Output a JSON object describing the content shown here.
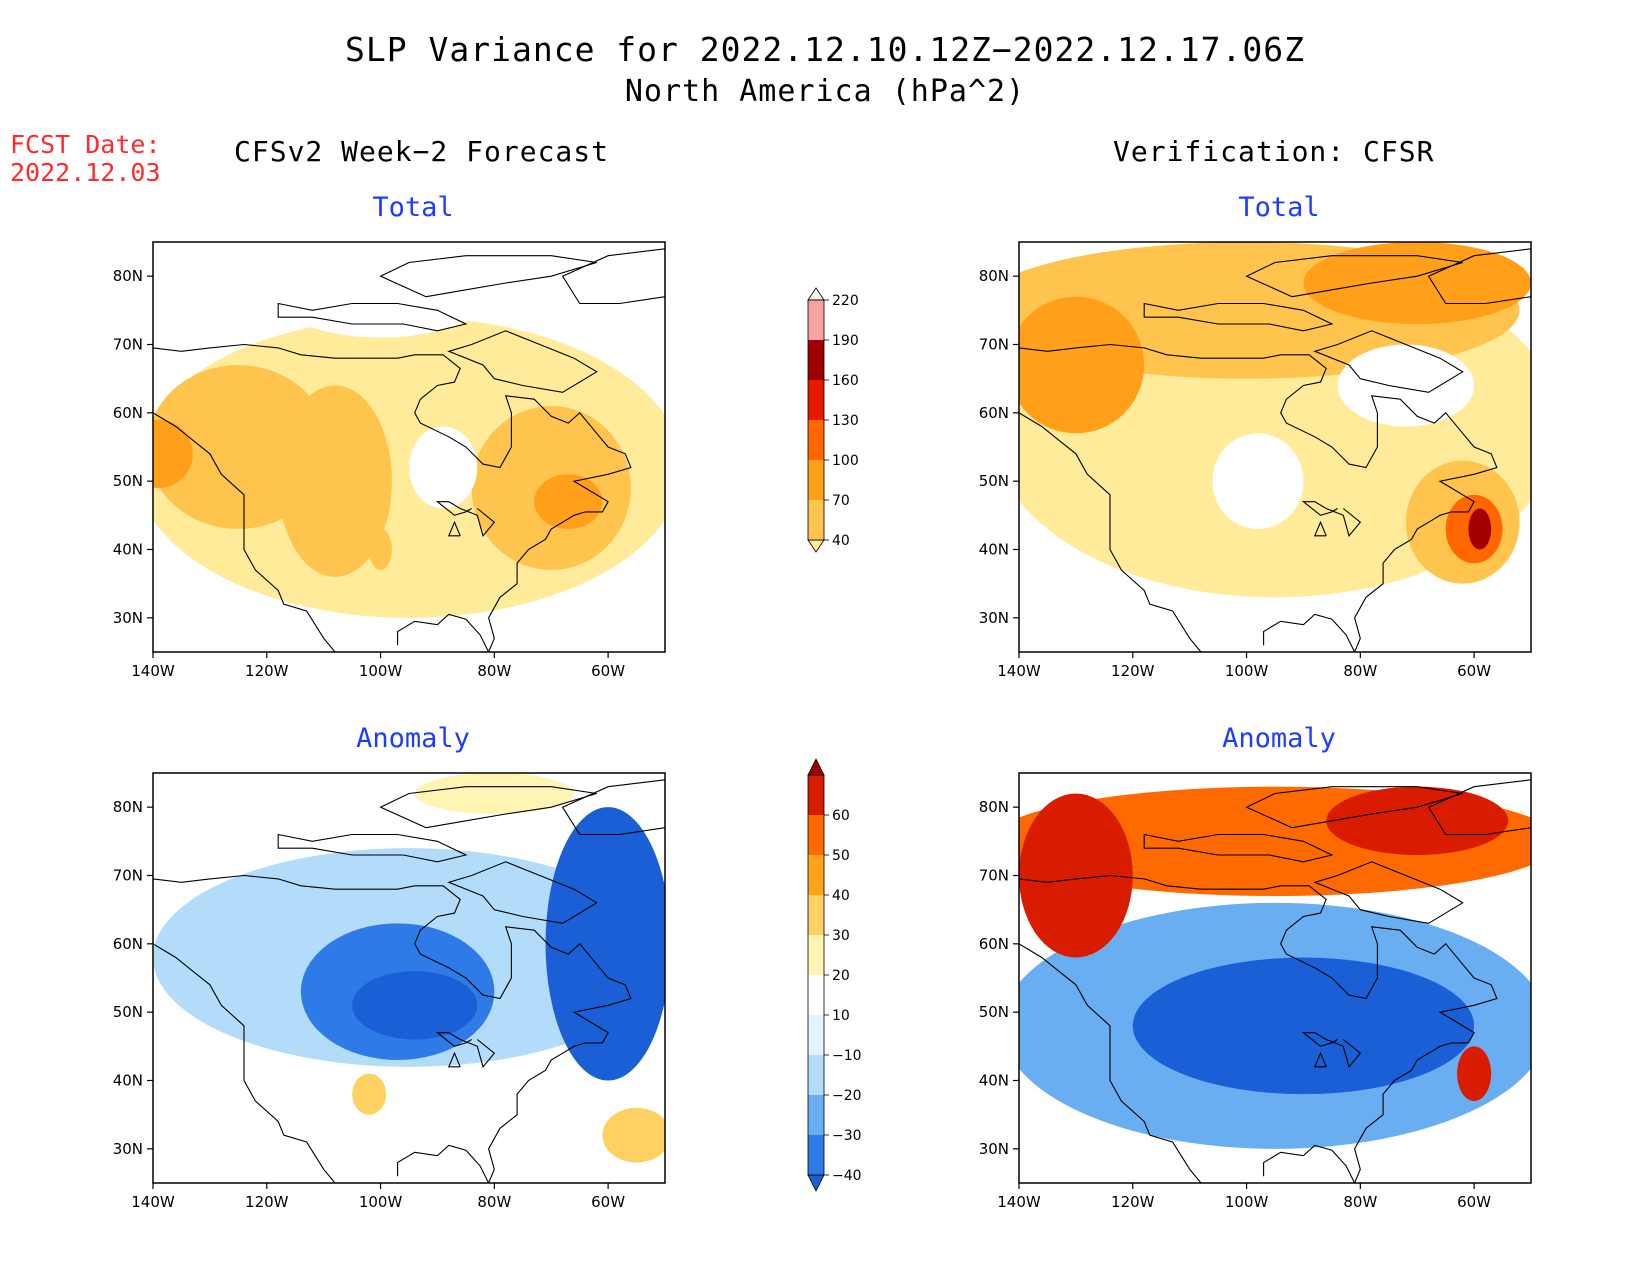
{
  "title": {
    "line1": "SLP Variance for 2022.12.10.12Z−2022.12.17.06Z",
    "line2": "North America (hPa^2)"
  },
  "fcst_date": {
    "label": "FCST Date:",
    "value": "2022.12.03"
  },
  "columns": {
    "left": "CFSv2 Week−2 Forecast",
    "right": "Verification: CFSR"
  },
  "panels": [
    {
      "id": "forecast-total",
      "title": "Total",
      "scale": "total",
      "blobs": [
        {
          "lon": -95,
          "lat": 52,
          "rx": 48,
          "ry": 22,
          "level": 1
        },
        {
          "lon": -125,
          "lat": 55,
          "rx": 16,
          "ry": 12,
          "level": 2
        },
        {
          "lon": -108,
          "lat": 50,
          "rx": 10,
          "ry": 14,
          "level": 2
        },
        {
          "lon": -70,
          "lat": 49,
          "rx": 14,
          "ry": 12,
          "level": 2
        },
        {
          "lon": -139,
          "lat": 54,
          "rx": 6,
          "ry": 5,
          "level": 3
        },
        {
          "lon": -67,
          "lat": 47,
          "rx": 6,
          "ry": 4,
          "level": 3
        },
        {
          "lon": -100,
          "lat": 40,
          "rx": 2,
          "ry": 3,
          "level": 2
        },
        {
          "lon": -89,
          "lat": 52,
          "rx": 6,
          "ry": 6,
          "level": 0
        },
        {
          "lon": -100,
          "lat": 80,
          "rx": 22,
          "ry": 9,
          "level": 0
        }
      ]
    },
    {
      "id": "verification-total",
      "title": "Total",
      "scale": "total",
      "blobs": [
        {
          "lon": -95,
          "lat": 58,
          "rx": 50,
          "ry": 25,
          "level": 1
        },
        {
          "lon": -100,
          "lat": 75,
          "rx": 48,
          "ry": 10,
          "level": 2
        },
        {
          "lon": -130,
          "lat": 67,
          "rx": 12,
          "ry": 10,
          "level": 3
        },
        {
          "lon": -70,
          "lat": 79,
          "rx": 20,
          "ry": 6,
          "level": 3
        },
        {
          "lon": -62,
          "lat": 44,
          "rx": 10,
          "ry": 9,
          "level": 2
        },
        {
          "lon": -60,
          "lat": 43,
          "rx": 5,
          "ry": 5,
          "level": 4
        },
        {
          "lon": -59,
          "lat": 43,
          "rx": 2,
          "ry": 3,
          "level": 6
        },
        {
          "lon": -98,
          "lat": 50,
          "rx": 8,
          "ry": 7,
          "level": 0
        },
        {
          "lon": -72,
          "lat": 64,
          "rx": 12,
          "ry": 6,
          "level": 0
        }
      ]
    },
    {
      "id": "forecast-anomaly",
      "title": "Anomaly",
      "scale": "anomaly",
      "blobs": [
        {
          "lon": -95,
          "lat": 58,
          "rx": 45,
          "ry": 16,
          "level": -1
        },
        {
          "lon": -97,
          "lat": 53,
          "rx": 17,
          "ry": 10,
          "level": -3
        },
        {
          "lon": -94,
          "lat": 51,
          "rx": 11,
          "ry": 5,
          "level": -4
        },
        {
          "lon": -60,
          "lat": 60,
          "rx": 11,
          "ry": 20,
          "level": -4
        },
        {
          "lon": -80,
          "lat": 82,
          "rx": 14,
          "ry": 3,
          "level": 1
        },
        {
          "lon": -102,
          "lat": 38,
          "rx": 3,
          "ry": 3,
          "level": 2
        },
        {
          "lon": -55,
          "lat": 32,
          "rx": 6,
          "ry": 4,
          "level": 2
        }
      ]
    },
    {
      "id": "verification-anomaly",
      "title": "Anomaly",
      "scale": "anomaly",
      "blobs": [
        {
          "lon": -95,
          "lat": 48,
          "rx": 48,
          "ry": 18,
          "level": -2
        },
        {
          "lon": -90,
          "lat": 48,
          "rx": 30,
          "ry": 10,
          "level": -4
        },
        {
          "lon": -95,
          "lat": 75,
          "rx": 50,
          "ry": 8,
          "level": 4
        },
        {
          "lon": -130,
          "lat": 70,
          "rx": 10,
          "ry": 12,
          "level": 5
        },
        {
          "lon": -70,
          "lat": 78,
          "rx": 16,
          "ry": 5,
          "level": 5
        },
        {
          "lon": -60,
          "lat": 41,
          "rx": 3,
          "ry": 4,
          "level": 5
        }
      ]
    }
  ],
  "colorbars": {
    "total": {
      "labels": [
        "40",
        "70",
        "100",
        "130",
        "160",
        "190",
        "220"
      ],
      "colors": [
        "#ffeb99",
        "#ffc44d",
        "#ff9f1a",
        "#ff6600",
        "#e61a00",
        "#a00000",
        "#f5a3a3",
        "#fff0f0"
      ]
    },
    "anomaly": {
      "labels": [
        "−40",
        "−30",
        "−20",
        "−10",
        "10",
        "20",
        "30",
        "40",
        "50",
        "60"
      ],
      "colors": [
        "#1a5fd6",
        "#2e7ae6",
        "#6aaef2",
        "#b2dcfa",
        "#e2f4fd",
        "#ffffff",
        "#fff5b3",
        "#ffd062",
        "#ffa31a",
        "#ff6a00",
        "#d91c00",
        "#a00000"
      ]
    }
  },
  "axes": {
    "lon_ticks": [
      "140W",
      "120W",
      "100W",
      "80W",
      "60W"
    ],
    "lat_ticks": [
      "80N",
      "70N",
      "60N",
      "50N",
      "40N",
      "30N"
    ]
  }
}
